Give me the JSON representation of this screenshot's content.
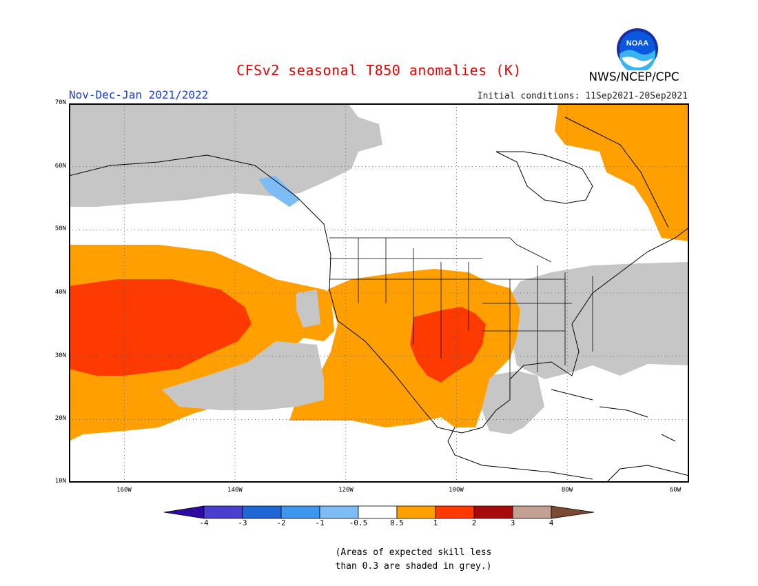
{
  "title": "CFSv2 seasonal T850 anomalies (K)",
  "period": "Nov-Dec-Jan 2021/2022",
  "initial_conditions": "Initial conditions: 11Sep2021-20Sep2021",
  "agency": "NWS/NCEP/CPC",
  "logo_text": "NOAA",
  "map": {
    "lat_labels": [
      "70N",
      "60N",
      "50N",
      "40N",
      "30N",
      "20N",
      "10N"
    ],
    "lon_labels": [
      "160W",
      "140W",
      "120W",
      "100W",
      "80W",
      "60W"
    ],
    "lat_range": [
      10,
      70
    ],
    "lon_range": [
      -172,
      -60
    ]
  },
  "colorbar": {
    "ticks": [
      "-4",
      "-3",
      "-2",
      "-1",
      "-0.5",
      "0.5",
      "1",
      "2",
      "3",
      "4"
    ],
    "colors": [
      "#2d0aa0",
      "#4a3ed0",
      "#1f66d6",
      "#3f96ee",
      "#7dbcf5",
      "#ffffff",
      "#ff9f00",
      "#ff3a00",
      "#a60a0a",
      "#c4a092",
      "#7a4a32"
    ]
  },
  "note_line1": "(Areas of expected skill less",
  "note_line2": "than 0.3 are shaded in grey.)"
}
